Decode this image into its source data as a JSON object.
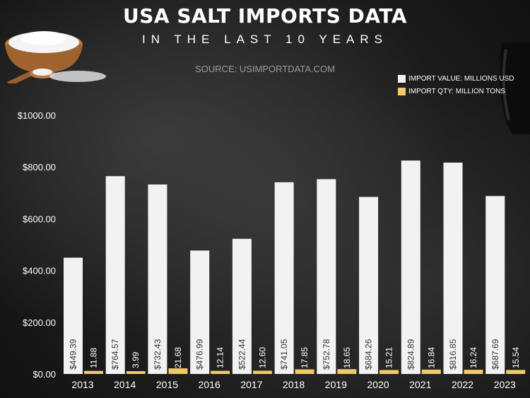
{
  "header": {
    "title": "USA SALT IMPORTS DATA",
    "subtitle": "IN THE LAST 10 YEARS",
    "source": "SOURCE: USIMPORTDATA.COM"
  },
  "chart_data": {
    "type": "bar",
    "title": "USA SALT IMPORTS DATA",
    "subtitle": "IN THE LAST 10 YEARS",
    "categories": [
      "2013",
      "2014",
      "2015",
      "2016",
      "2017",
      "2018",
      "2019",
      "2020",
      "2021",
      "2022",
      "2023"
    ],
    "series": [
      {
        "name": "IMPORT VALUE: MILLIONS USD",
        "color": "#f2f2f2",
        "values": [
          449.39,
          764.57,
          732.43,
          476.99,
          522.44,
          741.05,
          752.78,
          684.26,
          824.89,
          816.85,
          687.69
        ],
        "labels": [
          "$449.39",
          "$764.57",
          "$732.43",
          "$476.99",
          "$522.44",
          "$741.05",
          "$752.78",
          "$684.26",
          "$824.89",
          "$816.85",
          "$687.69"
        ]
      },
      {
        "name": "IMPORT QTY: MILLION TONS",
        "color": "#f0c96a",
        "values": [
          11.88,
          3.99,
          21.68,
          12.14,
          12.6,
          17.85,
          18.65,
          15.21,
          16.84,
          16.24,
          15.54
        ],
        "labels": [
          "11.88",
          "3.99",
          "21.68",
          "12.14",
          "12.60",
          "17.85",
          "18.65",
          "15.21",
          "16.84",
          "16.24",
          "15.54"
        ]
      }
    ],
    "ylim": [
      0,
      1000
    ],
    "yticks": [
      0,
      200,
      400,
      600,
      800,
      1000
    ],
    "ytick_labels": [
      "$0.00",
      "$200.00",
      "$400.00",
      "$600.00",
      "$800.00",
      "$1000.00"
    ],
    "grid": false,
    "legend_position": "top-right"
  }
}
